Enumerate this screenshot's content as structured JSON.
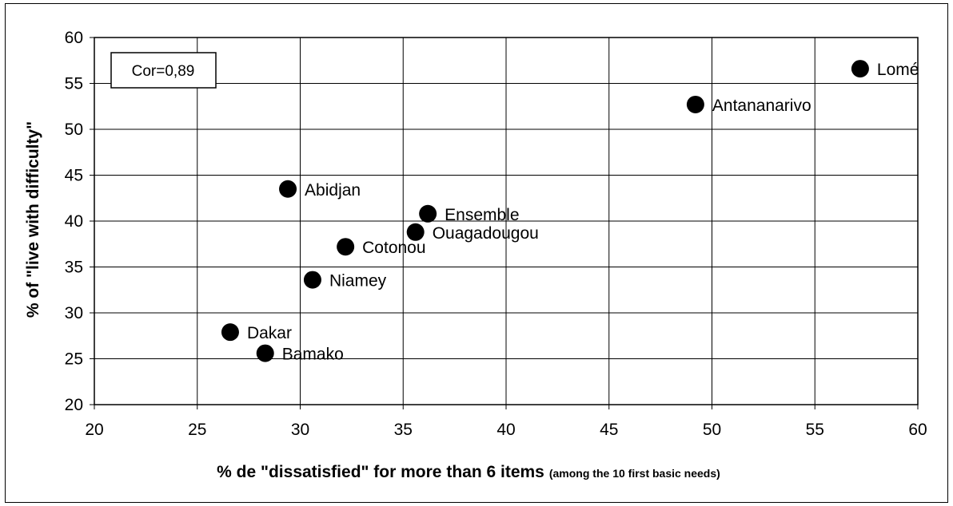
{
  "chart_data": {
    "type": "scatter",
    "title": "",
    "xlabel": "% de \"dissatisfied\" for more than 6 items",
    "xlabel_note": "(among the 10 first basic needs)",
    "ylabel": "% of \"live with difficulty\"",
    "xlim": [
      20,
      60
    ],
    "ylim": [
      20,
      60
    ],
    "x_ticks": [
      20,
      25,
      30,
      35,
      40,
      45,
      50,
      55,
      60
    ],
    "y_ticks": [
      20,
      25,
      30,
      35,
      40,
      45,
      50,
      55,
      60
    ],
    "grid": true,
    "annotation": "Cor=0,89",
    "marker_color": "#000000",
    "points": [
      {
        "label": "Lomé",
        "x": 57.2,
        "y": 56.6
      },
      {
        "label": "Antananarivo",
        "x": 49.2,
        "y": 52.7
      },
      {
        "label": "Abidjan",
        "x": 29.4,
        "y": 43.5
      },
      {
        "label": "Ensemble",
        "x": 36.2,
        "y": 40.8
      },
      {
        "label": "Ouagadougou",
        "x": 35.6,
        "y": 38.8
      },
      {
        "label": "Cotonou",
        "x": 32.2,
        "y": 37.2
      },
      {
        "label": "Niamey",
        "x": 30.6,
        "y": 33.6
      },
      {
        "label": "Dakar",
        "x": 26.6,
        "y": 27.9
      },
      {
        "label": "Bamako",
        "x": 28.3,
        "y": 25.6
      }
    ]
  }
}
